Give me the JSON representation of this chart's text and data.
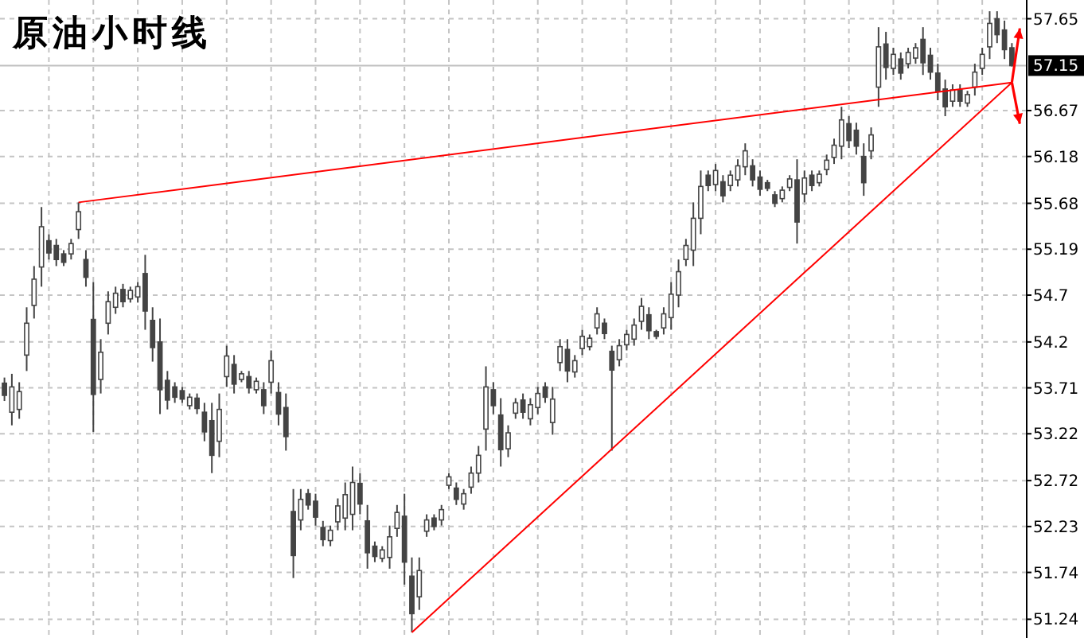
{
  "chart_data": {
    "type": "candlestick",
    "title": "原油小时线",
    "color": "#444444",
    "ylim": [
      51.04,
      57.85
    ],
    "yticks": [
      51.24,
      51.74,
      52.23,
      52.72,
      53.22,
      53.71,
      54.2,
      54.7,
      55.19,
      55.68,
      56.18,
      56.67,
      57.65
    ],
    "grid": true,
    "categories": [
      null,
      null,
      null,
      null,
      null,
      null,
      null,
      null,
      null,
      null,
      null,
      null,
      null,
      null,
      null,
      null,
      null,
      null,
      null,
      null,
      null,
      null,
      null,
      null,
      null,
      null,
      null,
      null,
      null,
      null,
      null,
      null,
      null,
      null,
      null,
      null,
      null,
      null,
      null,
      null,
      null,
      null,
      null,
      null,
      null,
      null,
      null,
      null,
      null,
      null,
      null,
      null,
      null,
      null,
      null,
      null,
      null,
      null,
      null,
      null,
      null,
      null,
      null,
      null,
      null,
      null,
      null,
      null,
      null,
      null,
      null,
      null,
      null,
      null,
      null,
      null,
      null,
      null,
      null,
      null,
      null,
      null,
      null,
      null,
      null,
      null,
      null,
      null,
      null,
      null,
      null,
      null,
      null,
      null,
      null,
      null,
      null,
      null,
      null,
      null,
      null,
      null,
      null,
      null,
      null,
      null,
      null,
      null,
      null,
      null,
      null,
      null,
      null,
      null,
      null,
      null,
      null,
      null,
      null,
      null,
      null,
      null,
      null,
      null,
      null,
      null,
      null,
      null,
      null,
      null,
      null,
      null,
      null,
      null,
      null,
      null,
      null
    ],
    "ohlc": [
      [
        53.76,
        53.82,
        53.57,
        53.63
      ],
      [
        53.45,
        53.86,
        53.31,
        53.72
      ],
      [
        53.48,
        53.77,
        53.38,
        53.67
      ],
      [
        54.06,
        54.57,
        53.89,
        54.4
      ],
      [
        54.59,
        55.01,
        54.45,
        54.87
      ],
      [
        55.0,
        55.64,
        54.79,
        55.43
      ],
      [
        55.28,
        55.35,
        55.08,
        55.15
      ],
      [
        55.23,
        55.3,
        55.01,
        55.08
      ],
      [
        55.14,
        55.18,
        55.01,
        55.05
      ],
      [
        55.14,
        55.3,
        55.08,
        55.25
      ],
      [
        55.4,
        55.69,
        55.3,
        55.59
      ],
      [
        55.08,
        55.18,
        54.79,
        54.89
      ],
      [
        54.44,
        54.84,
        53.24,
        53.64
      ],
      [
        53.8,
        54.23,
        53.65,
        54.09
      ],
      [
        54.4,
        54.74,
        54.28,
        54.63
      ],
      [
        54.57,
        54.79,
        54.5,
        54.72
      ],
      [
        54.76,
        54.82,
        54.57,
        54.63
      ],
      [
        54.66,
        54.79,
        54.62,
        54.75
      ],
      [
        54.68,
        54.84,
        54.62,
        54.79
      ],
      [
        54.93,
        55.13,
        54.33,
        54.53
      ],
      [
        54.43,
        54.57,
        53.99,
        54.14
      ],
      [
        54.2,
        54.45,
        53.43,
        53.69
      ],
      [
        53.79,
        53.89,
        53.48,
        53.58
      ],
      [
        53.72,
        53.77,
        53.55,
        53.61
      ],
      [
        53.68,
        53.72,
        53.55,
        53.59
      ],
      [
        53.52,
        53.65,
        53.48,
        53.61
      ],
      [
        53.6,
        53.65,
        53.43,
        53.49
      ],
      [
        53.45,
        53.55,
        53.14,
        53.24
      ],
      [
        53.36,
        53.55,
        52.8,
        52.99
      ],
      [
        53.14,
        53.65,
        52.97,
        53.48
      ],
      [
        53.83,
        54.16,
        53.72,
        54.05
      ],
      [
        53.96,
        54.06,
        53.65,
        53.75
      ],
      [
        53.8,
        53.89,
        53.77,
        53.86
      ],
      [
        53.83,
        53.89,
        53.65,
        53.71
      ],
      [
        53.69,
        53.82,
        53.65,
        53.78
      ],
      [
        53.69,
        53.77,
        53.43,
        53.52
      ],
      [
        53.77,
        54.11,
        53.65,
        54.0
      ],
      [
        53.66,
        53.77,
        53.31,
        53.43
      ],
      [
        53.5,
        53.65,
        53.04,
        53.19
      ],
      [
        52.39,
        52.63,
        51.68,
        51.92
      ],
      [
        52.3,
        52.63,
        52.19,
        52.52
      ],
      [
        52.58,
        52.63,
        52.41,
        52.46
      ],
      [
        52.5,
        52.58,
        52.24,
        52.33
      ],
      [
        52.22,
        52.29,
        52.02,
        52.09
      ],
      [
        52.08,
        52.24,
        52.02,
        52.19
      ],
      [
        52.28,
        52.53,
        52.19,
        52.45
      ],
      [
        52.32,
        52.7,
        52.19,
        52.57
      ],
      [
        52.36,
        52.87,
        52.19,
        52.7
      ],
      [
        52.69,
        52.8,
        52.36,
        52.47
      ],
      [
        52.29,
        52.46,
        51.78,
        51.95
      ],
      [
        52.02,
        52.07,
        51.85,
        51.91
      ],
      [
        51.89,
        52.02,
        51.85,
        51.98
      ],
      [
        51.9,
        52.24,
        51.78,
        52.12
      ],
      [
        52.21,
        52.46,
        52.12,
        52.38
      ],
      [
        52.34,
        52.58,
        51.61,
        51.85
      ],
      [
        51.7,
        51.9,
        51.1,
        51.3
      ],
      [
        51.48,
        51.9,
        51.34,
        51.76
      ],
      [
        52.18,
        52.36,
        52.12,
        52.3
      ],
      [
        52.32,
        52.36,
        52.19,
        52.23
      ],
      [
        52.3,
        52.46,
        52.24,
        52.41
      ],
      [
        52.67,
        52.8,
        52.63,
        52.76
      ],
      [
        52.64,
        52.7,
        52.46,
        52.52
      ],
      [
        52.47,
        52.63,
        52.41,
        52.58
      ],
      [
        52.65,
        52.87,
        52.58,
        52.8
      ],
      [
        52.8,
        53.09,
        52.7,
        52.99
      ],
      [
        53.27,
        53.94,
        53.04,
        53.72
      ],
      [
        53.69,
        53.77,
        53.43,
        53.52
      ],
      [
        53.42,
        53.6,
        52.87,
        53.05
      ],
      [
        53.06,
        53.31,
        52.97,
        53.23
      ],
      [
        53.44,
        53.6,
        53.38,
        53.55
      ],
      [
        53.58,
        53.65,
        53.38,
        53.45
      ],
      [
        53.38,
        53.6,
        53.31,
        53.53
      ],
      [
        53.5,
        53.72,
        53.43,
        53.65
      ],
      [
        53.72,
        53.77,
        53.55,
        53.61
      ],
      [
        53.34,
        53.72,
        53.21,
        53.59
      ],
      [
        53.98,
        54.23,
        53.89,
        54.15
      ],
      [
        54.12,
        54.23,
        53.77,
        53.89
      ],
      [
        53.88,
        54.06,
        53.82,
        54.0
      ],
      [
        54.13,
        54.33,
        54.06,
        54.26
      ],
      [
        54.15,
        54.28,
        54.11,
        54.24
      ],
      [
        54.35,
        54.57,
        54.28,
        54.5
      ],
      [
        54.4,
        54.45,
        54.23,
        54.29
      ],
      [
        54.1,
        54.16,
        53.04,
        53.9
      ],
      [
        54.01,
        54.23,
        53.94,
        54.16
      ],
      [
        54.17,
        54.33,
        54.11,
        54.28
      ],
      [
        54.23,
        54.45,
        54.16,
        54.38
      ],
      [
        54.42,
        54.67,
        54.33,
        54.58
      ],
      [
        54.49,
        54.57,
        54.23,
        54.32
      ],
      [
        54.31,
        54.33,
        54.23,
        54.26
      ],
      [
        54.35,
        54.57,
        54.28,
        54.5
      ],
      [
        54.46,
        54.84,
        54.33,
        54.71
      ],
      [
        54.7,
        55.08,
        54.57,
        54.95
      ],
      [
        55.08,
        55.3,
        55.01,
        55.23
      ],
      [
        55.18,
        55.69,
        55.01,
        55.52
      ],
      [
        55.52,
        56.03,
        55.35,
        55.86
      ],
      [
        55.98,
        56.03,
        55.81,
        55.87
      ],
      [
        55.88,
        56.1,
        55.81,
        56.03
      ],
      [
        55.91,
        55.98,
        55.69,
        55.76
      ],
      [
        55.87,
        56.03,
        55.81,
        55.98
      ],
      [
        55.93,
        56.15,
        55.86,
        56.08
      ],
      [
        56.07,
        56.32,
        55.98,
        56.24
      ],
      [
        56.08,
        56.15,
        55.86,
        55.93
      ],
      [
        55.96,
        56.03,
        55.76,
        55.83
      ],
      [
        55.9,
        55.93,
        55.81,
        55.84
      ],
      [
        55.77,
        55.81,
        55.64,
        55.68
      ],
      [
        55.73,
        55.86,
        55.69,
        55.82
      ],
      [
        55.85,
        55.98,
        55.81,
        55.94
      ],
      [
        55.93,
        56.15,
        55.25,
        55.48
      ],
      [
        55.78,
        56.03,
        55.69,
        55.95
      ],
      [
        55.98,
        56.03,
        55.81,
        55.87
      ],
      [
        55.9,
        56.03,
        55.86,
        55.99
      ],
      [
        56.04,
        56.2,
        55.98,
        56.14
      ],
      [
        56.17,
        56.37,
        56.1,
        56.3
      ],
      [
        56.29,
        56.71,
        56.15,
        56.57
      ],
      [
        56.53,
        56.61,
        56.27,
        56.35
      ],
      [
        56.46,
        56.54,
        56.2,
        56.29
      ],
      [
        56.18,
        56.32,
        55.76,
        55.9
      ],
      [
        56.24,
        56.49,
        56.15,
        56.41
      ],
      [
        56.92,
        57.56,
        56.71,
        57.35
      ],
      [
        57.38,
        57.51,
        57.0,
        57.13
      ],
      [
        57.12,
        57.34,
        57.05,
        57.27
      ],
      [
        57.22,
        57.29,
        57.0,
        57.07
      ],
      [
        57.17,
        57.34,
        57.12,
        57.29
      ],
      [
        57.23,
        57.39,
        57.17,
        57.34
      ],
      [
        57.43,
        57.56,
        57.05,
        57.18
      ],
      [
        57.26,
        57.34,
        57.0,
        57.08
      ],
      [
        57.07,
        57.17,
        56.78,
        56.88
      ],
      [
        56.9,
        57.0,
        56.61,
        56.71
      ],
      [
        56.77,
        56.95,
        56.71,
        56.89
      ],
      [
        56.89,
        56.95,
        56.71,
        56.77
      ],
      [
        56.75,
        56.88,
        56.71,
        56.84
      ],
      [
        56.92,
        57.17,
        56.83,
        57.08
      ],
      [
        57.12,
        57.34,
        57.05,
        57.27
      ],
      [
        57.35,
        57.73,
        57.22,
        57.6
      ],
      [
        57.65,
        57.73,
        57.39,
        57.48
      ],
      [
        57.53,
        57.63,
        57.22,
        57.32
      ],
      [
        57.34,
        57.39,
        57.14,
        57.15
      ]
    ],
    "series": [
      {
        "type": "line",
        "color": "#ff0000",
        "values": [
          null,
          null,
          null,
          null,
          null,
          null,
          null,
          null,
          null,
          null,
          55.69,
          null,
          null,
          null,
          null,
          null,
          null,
          null,
          null,
          null,
          null,
          null,
          null,
          null,
          null,
          null,
          null,
          null,
          null,
          null,
          null,
          null,
          null,
          null,
          null,
          null,
          null,
          null,
          null,
          null,
          null,
          null,
          null,
          null,
          null,
          null,
          null,
          null,
          null,
          null,
          null,
          null,
          null,
          null,
          null,
          null,
          null,
          null,
          null,
          null,
          null,
          null,
          null,
          null,
          null,
          null,
          null,
          null,
          null,
          null,
          null,
          null,
          null,
          null,
          null,
          null,
          null,
          null,
          null,
          null,
          null,
          null,
          null,
          null,
          null,
          null,
          null,
          null,
          null,
          null,
          null,
          null,
          null,
          null,
          null,
          null,
          null,
          null,
          null,
          null,
          null,
          null,
          null,
          null,
          null,
          null,
          null,
          null,
          null,
          null,
          null,
          null,
          null,
          null,
          null,
          null,
          null,
          null,
          null,
          null,
          null,
          null,
          null,
          null,
          null,
          null,
          null,
          null,
          null,
          null,
          null,
          null,
          null,
          null,
          null,
          null,
          56.97
        ]
      },
      {
        "type": "line",
        "color": "#ff0000",
        "values": [
          null,
          null,
          null,
          null,
          null,
          null,
          null,
          null,
          null,
          null,
          null,
          null,
          null,
          null,
          null,
          null,
          null,
          null,
          null,
          null,
          null,
          null,
          null,
          null,
          null,
          null,
          null,
          null,
          null,
          null,
          null,
          null,
          null,
          null,
          null,
          null,
          null,
          null,
          null,
          null,
          null,
          null,
          null,
          null,
          null,
          null,
          null,
          null,
          null,
          null,
          null,
          null,
          null,
          null,
          null,
          51.1,
          null,
          null,
          null,
          null,
          null,
          null,
          null,
          null,
          null,
          null,
          null,
          null,
          null,
          null,
          null,
          null,
          null,
          null,
          null,
          null,
          null,
          null,
          null,
          null,
          null,
          null,
          null,
          null,
          null,
          null,
          null,
          null,
          null,
          null,
          null,
          null,
          null,
          null,
          null,
          null,
          null,
          null,
          null,
          null,
          null,
          null,
          null,
          null,
          null,
          null,
          null,
          null,
          null,
          null,
          null,
          null,
          null,
          null,
          null,
          null,
          null,
          null,
          null,
          null,
          null,
          null,
          null,
          null,
          null,
          null,
          null,
          null,
          null,
          null,
          null,
          null,
          null,
          null,
          null,
          null,
          56.97
        ]
      }
    ],
    "ref_lines": [
      {
        "axis": "y",
        "value": 57.15,
        "label": "57.15",
        "color": "#c0c0c0"
      }
    ]
  }
}
